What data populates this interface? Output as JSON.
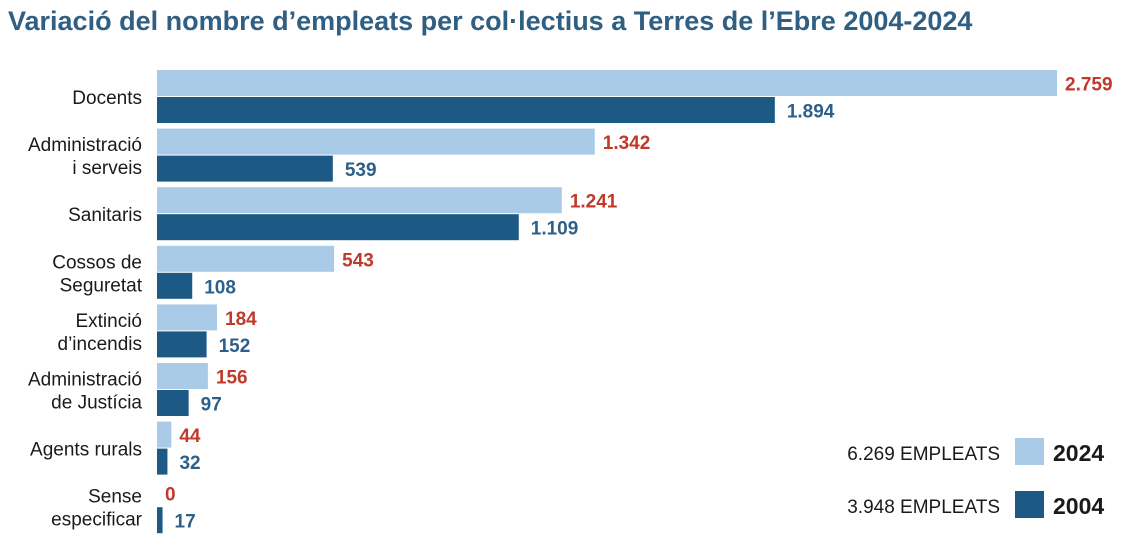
{
  "chart_data": {
    "type": "bar",
    "orientation": "horizontal",
    "title": "Variació del nombre d’empleats per col·lectius a Terres de l’Ebre 2004-2024",
    "categories": [
      [
        "Docents"
      ],
      [
        "Administració",
        "i serveis"
      ],
      [
        "Sanitaris"
      ],
      [
        "Cossos de",
        "Seguretat"
      ],
      [
        "Extinció",
        "d’incendis"
      ],
      [
        "Administració",
        "de Justícia"
      ],
      [
        "Agents rurals"
      ],
      [
        "Sense",
        "especificar"
      ]
    ],
    "series": [
      {
        "name": "2024",
        "color": "#a9cbe8",
        "label_color": "#c0392b",
        "values": [
          2759,
          1342,
          1241,
          543,
          184,
          156,
          44,
          0
        ],
        "labels": [
          "2.759",
          "1.342",
          "1.241",
          "543",
          "184",
          "156",
          "44",
          "0"
        ]
      },
      {
        "name": "2004",
        "color": "#1c5a85",
        "label_color": "#2c5f8a",
        "values": [
          1894,
          539,
          1109,
          108,
          152,
          97,
          32,
          17
        ],
        "labels": [
          "1.894",
          "539",
          "1.109",
          "108",
          "152",
          "97",
          "32",
          "17"
        ]
      }
    ],
    "legend": {
      "placement": "bottom-right",
      "items": [
        {
          "total": "6.269 EMPLEATS",
          "year": "2024",
          "color": "#a9cbe8"
        },
        {
          "total": "3.948 EMPLEATS",
          "year": "2004",
          "color": "#1c5a85"
        }
      ]
    },
    "xlim": [
      0,
      2759
    ],
    "grid": false
  }
}
